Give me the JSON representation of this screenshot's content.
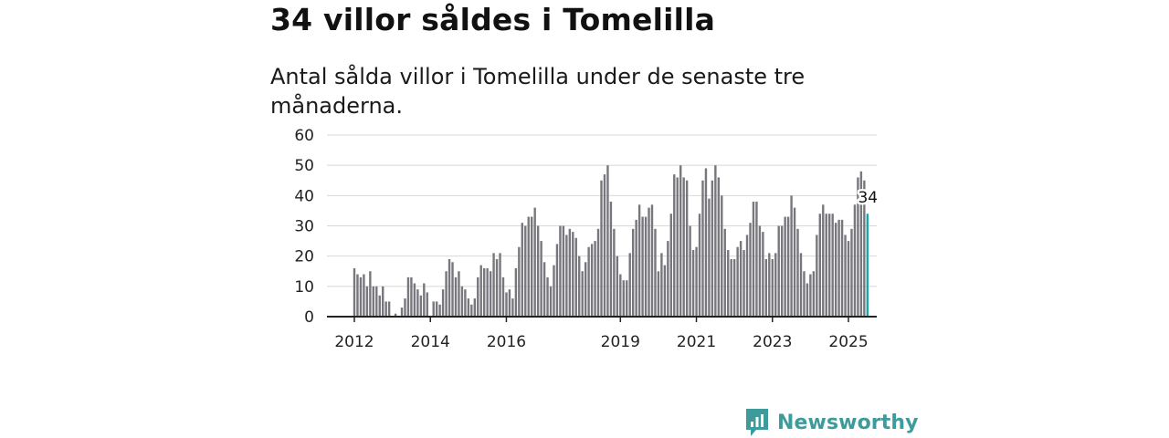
{
  "headline": "34 villor såldes i Tomelilla",
  "subtitle": "Antal sålda villor i Tomelilla under de senaste tre månaderna.",
  "brand": {
    "name": "Newsworthy",
    "icon": "newsworthy-logo-icon",
    "color": "#3e9b9b"
  },
  "colors": {
    "bar": "#77777d",
    "highlight": "#1aa6a6",
    "grid": "#d8d8d8",
    "axis": "#222222"
  },
  "chart_data": {
    "type": "bar",
    "title": "Antal sålda villor i Tomelilla under de senaste tre månaderna.",
    "xlabel": "",
    "ylabel": "",
    "ylim": [
      0,
      60
    ],
    "yticks": [
      "0",
      "10",
      "20",
      "30",
      "40",
      "50",
      "60"
    ],
    "grid": true,
    "x_tick_labels": [
      {
        "label": "2012",
        "index": 0
      },
      {
        "label": "2014",
        "index": 24
      },
      {
        "label": "2016",
        "index": 48
      },
      {
        "label": "2019",
        "index": 84
      },
      {
        "label": "2021",
        "index": 108
      },
      {
        "label": "2023",
        "index": 132
      },
      {
        "label": "2025",
        "index": 156
      }
    ],
    "start": "2012-01",
    "frequency": "monthly",
    "highlight_last": true,
    "last_label": "34",
    "values": [
      16,
      14,
      13,
      14,
      10,
      15,
      10,
      10,
      7,
      10,
      5,
      5,
      0,
      1,
      0,
      3,
      6,
      13,
      13,
      11,
      9,
      7,
      11,
      8,
      0,
      5,
      5,
      4,
      9,
      15,
      19,
      18,
      13,
      15,
      10,
      9,
      6,
      4,
      6,
      13,
      17,
      16,
      16,
      15,
      21,
      19,
      21,
      13,
      8,
      9,
      6,
      16,
      23,
      31,
      30,
      33,
      33,
      36,
      30,
      25,
      18,
      13,
      10,
      17,
      24,
      30,
      30,
      27,
      29,
      28,
      26,
      20,
      15,
      18,
      23,
      24,
      25,
      29,
      45,
      47,
      50,
      38,
      29,
      20,
      14,
      12,
      12,
      21,
      29,
      32,
      37,
      33,
      33,
      36,
      37,
      29,
      15,
      21,
      17,
      25,
      34,
      47,
      46,
      50,
      46,
      45,
      30,
      22,
      23,
      34,
      45,
      49,
      39,
      45,
      50,
      46,
      40,
      29,
      22,
      19,
      19,
      23,
      25,
      22,
      27,
      31,
      38,
      38,
      30,
      28,
      19,
      21,
      19,
      21,
      30,
      30,
      33,
      33,
      40,
      36,
      29,
      21,
      15,
      11,
      14,
      15,
      27,
      34,
      37,
      34,
      34,
      34,
      31,
      32,
      32,
      27,
      25,
      29,
      37,
      46,
      48,
      45,
      34
    ]
  }
}
